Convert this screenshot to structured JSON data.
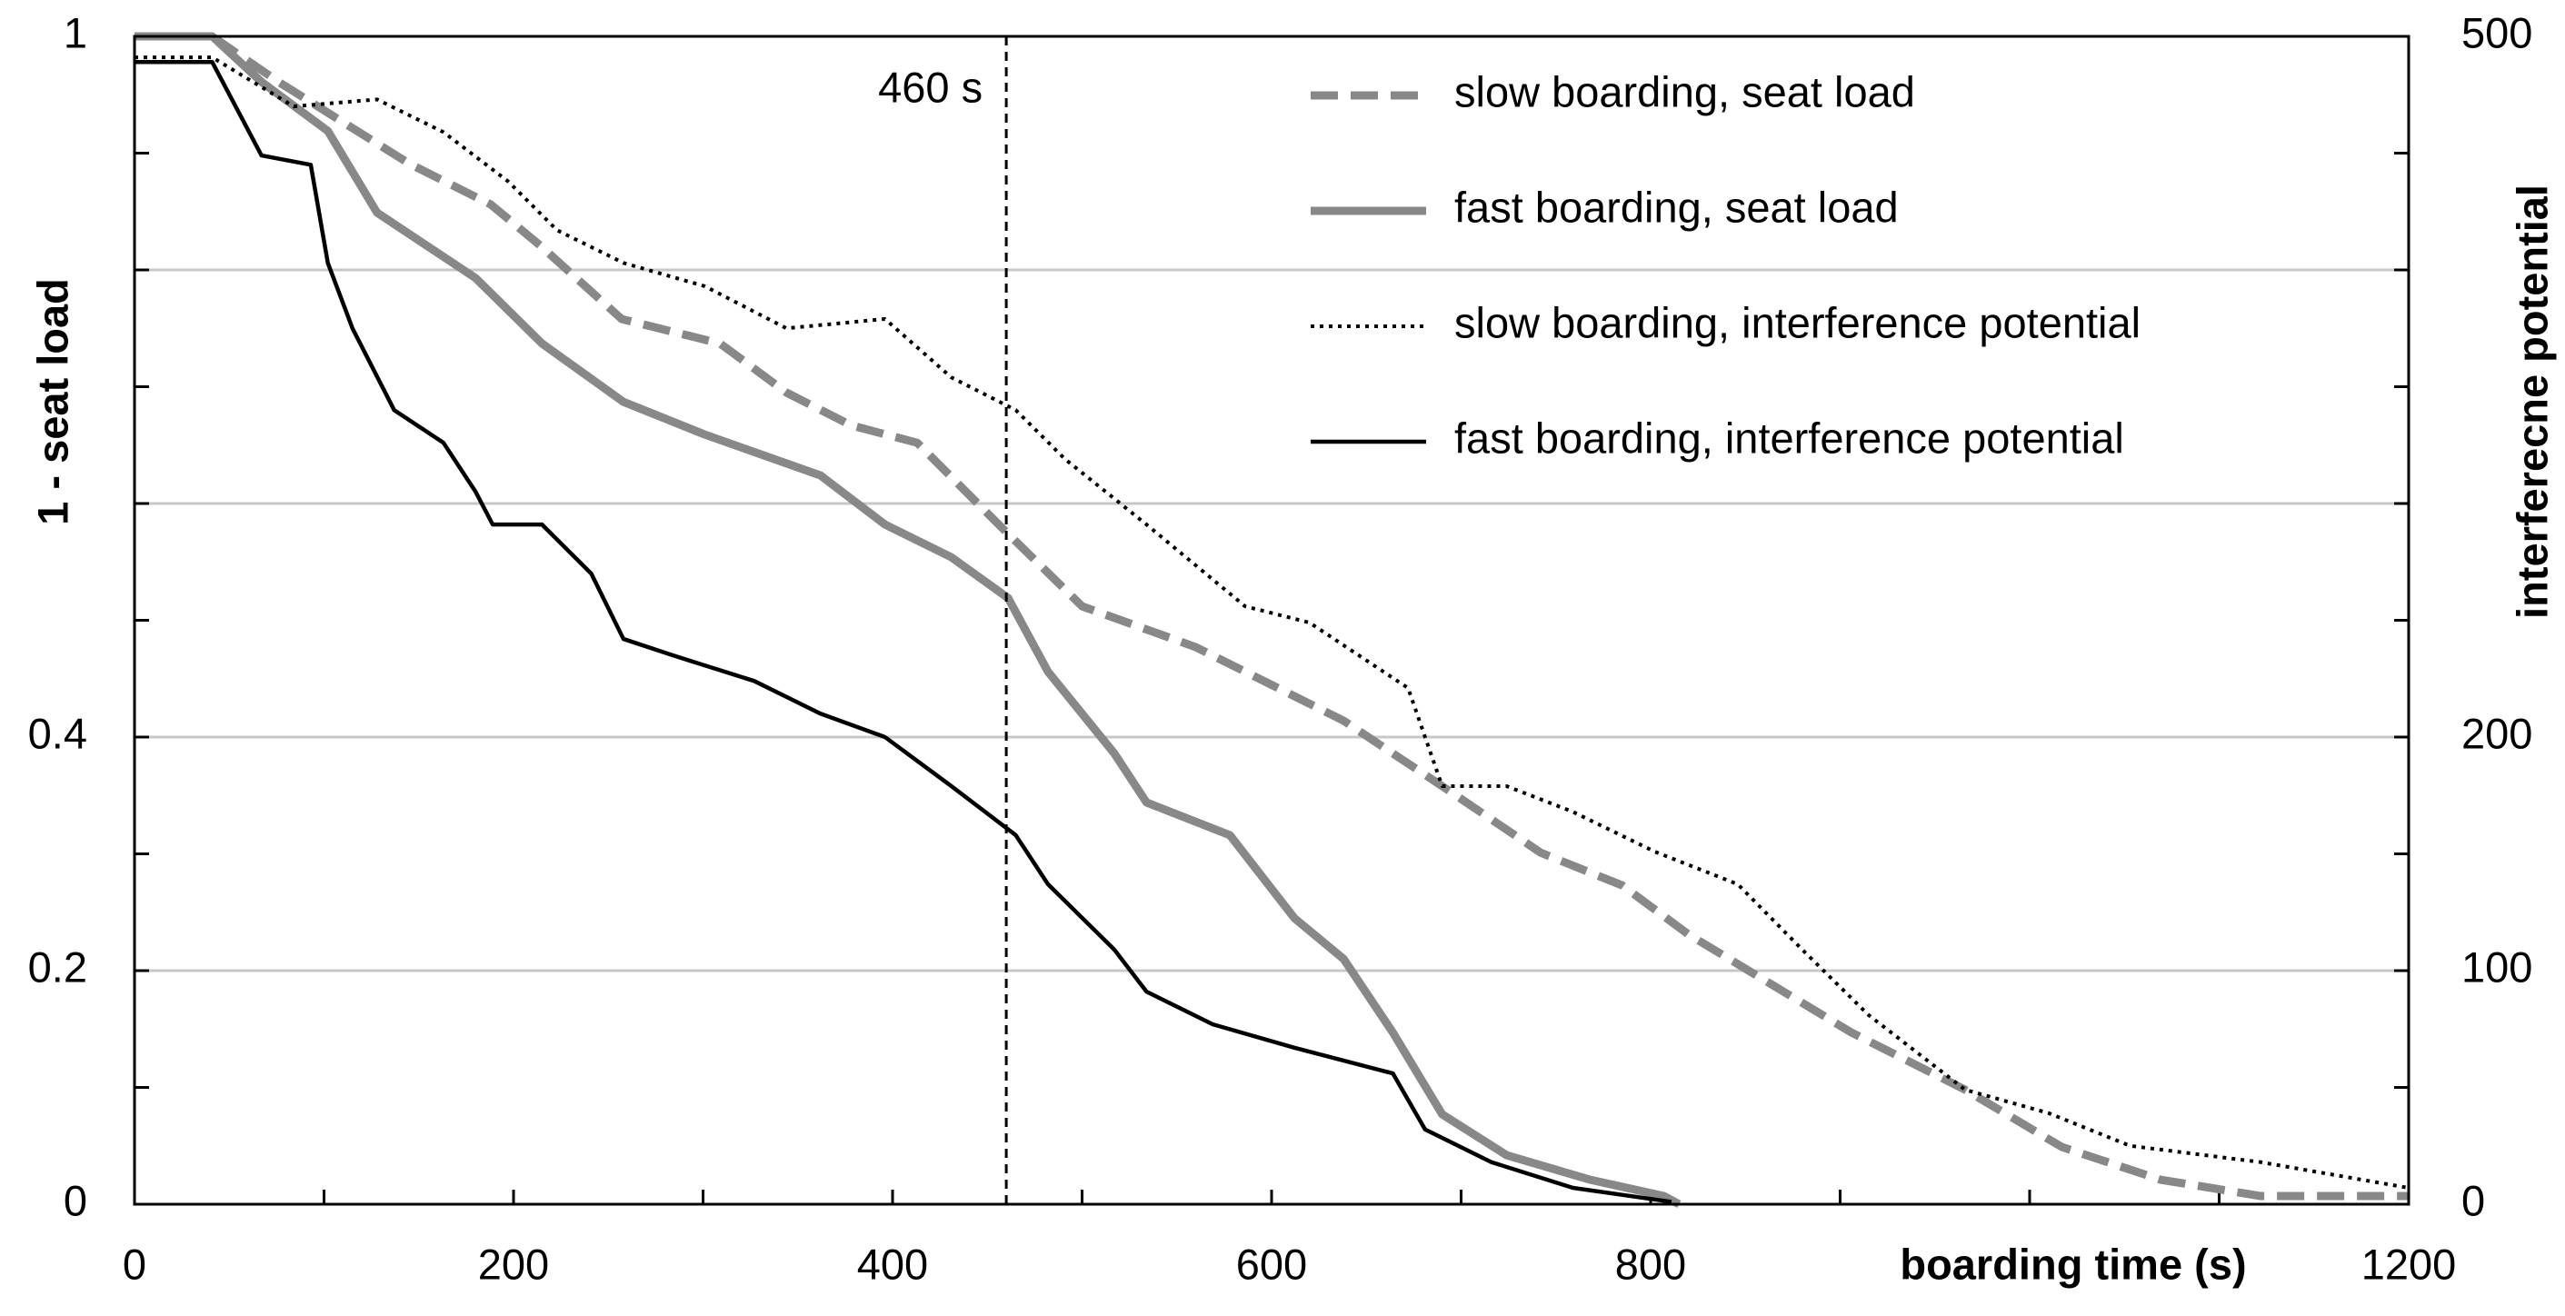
{
  "chart_data": {
    "type": "line",
    "xlabel": "boarding time (s)",
    "ylabel": "1 - seat load",
    "y2label": "interferecne potential",
    "xlim": [
      0,
      1200
    ],
    "xticks": [
      0,
      200,
      400,
      600,
      800,
      1200
    ],
    "xtick_marks": [
      0,
      100,
      200,
      300,
      400,
      500,
      600,
      700,
      800,
      900,
      1000,
      1100,
      1200
    ],
    "ylim": [
      0,
      1
    ],
    "yticks": [
      0,
      0.2,
      0.4,
      1
    ],
    "ytick_marks": [
      0,
      0.1,
      0.2,
      0.3,
      0.4,
      0.5,
      0.6,
      0.7,
      0.8,
      0.9,
      1
    ],
    "ygrid": [
      0.2,
      0.4,
      0.6,
      0.8
    ],
    "y2lim": [
      0,
      500
    ],
    "y2ticks": [
      0,
      100,
      200,
      500
    ],
    "annotation": {
      "text": "460 s",
      "x": 460
    },
    "legend": "upper right",
    "series": [
      {
        "name": "slow boarding, seat load",
        "color": "#888888",
        "line_style": "dashed",
        "axis": "y",
        "x": [
          0,
          41,
          76,
          145,
          188,
          214,
          257,
          309,
          344,
          378,
          413,
          456,
          500,
          560,
          586,
          638,
          690,
          742,
          785,
          820,
          863,
          906,
          966,
          1017,
          1069,
          1122,
          1200
        ],
        "values": [
          1,
          1,
          0.961,
          0.891,
          0.856,
          0.821,
          0.758,
          0.737,
          0.695,
          0.667,
          0.652,
          0.582,
          0.512,
          0.477,
          0.456,
          0.414,
          0.358,
          0.301,
          0.273,
          0.231,
          0.189,
          0.147,
          0.098,
          0.049,
          0.021,
          0.007,
          0.007
        ]
      },
      {
        "name": "fast boarding, seat load",
        "color": "#888888",
        "line_style": "solid",
        "axis": "y",
        "x": [
          0,
          41,
          67,
          102,
          128,
          180,
          215,
          258,
          301,
          362,
          396,
          431,
          461,
          482,
          517,
          534,
          578,
          612,
          638,
          664,
          690,
          724,
          768,
          807,
          815
        ],
        "values": [
          1,
          1,
          0.961,
          0.919,
          0.849,
          0.793,
          0.737,
          0.687,
          0.659,
          0.624,
          0.582,
          0.554,
          0.519,
          0.456,
          0.386,
          0.344,
          0.316,
          0.245,
          0.21,
          0.147,
          0.077,
          0.042,
          0.021,
          0.007,
          0
        ]
      },
      {
        "name": "slow boarding, interference potential",
        "color": "#000000",
        "line_style": "dotted",
        "axis": "y2",
        "x": [
          0,
          41,
          84,
          128,
          163,
          197,
          223,
          258,
          301,
          344,
          396,
          431,
          465,
          491,
          534,
          586,
          620,
          672,
          690,
          724,
          759,
          802,
          846,
          880,
          915,
          966,
          1010,
          1053,
          1122,
          1200
        ],
        "values": [
          491,
          491,
          470,
          473,
          459,
          438,
          417,
          403,
          393,
          375,
          379,
          354,
          340,
          319,
          291,
          256,
          249,
          221,
          179,
          179,
          168,
          151,
          137,
          109,
          81,
          49,
          39,
          25,
          18,
          7
        ]
      },
      {
        "name": "fast boarding, interference potential",
        "color": "#000000",
        "line_style": "solid",
        "axis": "y2",
        "x": [
          0,
          41,
          67,
          93,
          102,
          115,
          137,
          163,
          180,
          189,
          215,
          241,
          258,
          284,
          327,
          362,
          396,
          431,
          465,
          482,
          517,
          534,
          569,
          612,
          664,
          681,
          716,
          759,
          811
        ],
        "values": [
          489,
          489,
          449,
          445,
          403,
          375,
          340,
          326,
          305,
          291,
          291,
          270,
          242,
          235,
          224,
          210,
          200,
          179,
          158,
          137,
          109,
          91,
          77,
          67,
          56,
          32,
          18,
          7,
          1
        ]
      }
    ]
  }
}
